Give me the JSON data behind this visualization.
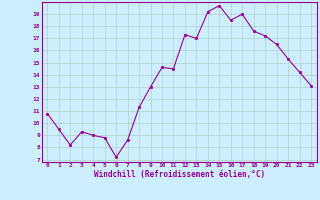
{
  "x": [
    0,
    1,
    2,
    3,
    4,
    5,
    6,
    7,
    8,
    9,
    10,
    11,
    12,
    13,
    14,
    15,
    16,
    17,
    18,
    19,
    20,
    21,
    22,
    23
  ],
  "y": [
    10.8,
    9.5,
    8.2,
    9.3,
    9.0,
    8.8,
    7.2,
    8.6,
    11.3,
    13.0,
    14.6,
    14.5,
    17.3,
    17.0,
    19.2,
    19.7,
    18.5,
    19.0,
    17.6,
    17.2,
    16.5,
    15.3,
    14.2,
    13.1
  ],
  "line_color": "#990099",
  "marker": "s",
  "marker_size": 2,
  "bg_color": "#cceeff",
  "grid_color": "#b0d4c8",
  "xlabel": "Windchill (Refroidissement éolien,°C)",
  "xlabel_color": "#990099",
  "ylabel_ticks": [
    7,
    8,
    9,
    10,
    11,
    12,
    13,
    14,
    15,
    16,
    17,
    18,
    19
  ],
  "xtick_labels": [
    "0",
    "1",
    "2",
    "3",
    "4",
    "5",
    "6",
    "7",
    "8",
    "9",
    "10",
    "11",
    "12",
    "13",
    "14",
    "15",
    "16",
    "17",
    "18",
    "19",
    "20",
    "21",
    "22",
    "23"
  ],
  "ylim": [
    6.8,
    20.0
  ],
  "xlim": [
    -0.5,
    23.5
  ]
}
